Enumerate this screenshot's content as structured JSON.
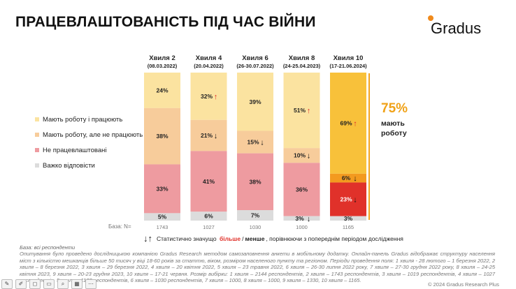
{
  "title": "ПРАЦЕВЛАШТОВАНІСТЬ ПІД ЧАС ВІЙНИ",
  "logo": "Gradus",
  "colors": {
    "accent": "#f0a218",
    "seg1": "#fbe3a0",
    "seg2": "#f7cc9b",
    "seg3": "#ee9ba0",
    "seg4": "#dcdcdc",
    "hl1": "#f8c13a",
    "hl2": "#f39a1f",
    "hl3": "#e0312a",
    "hl4": "#dcdcdc",
    "up": "#e0312a",
    "down": "#111111"
  },
  "chart_data": {
    "type": "bar",
    "stacked": true,
    "categories": [
      {
        "name": "Хвиля 2",
        "date": "(08.03.2022)",
        "base": "1743"
      },
      {
        "name": "Хвиля 4",
        "date": "(20.04.2022)",
        "base": "1027"
      },
      {
        "name": "Хвиля 6",
        "date": "(26-30.07.2022)",
        "base": "1030"
      },
      {
        "name": "Хвиля 8",
        "date": "(24-25.04.2023)",
        "base": "1000"
      },
      {
        "name": "Хвиля 10",
        "date": "(17-21.06.2024)",
        "base": "1165"
      }
    ],
    "highlight_index": 4,
    "series": [
      {
        "name": "Мають роботу і працюють",
        "values": [
          24,
          32,
          39,
          51,
          69
        ],
        "sig": [
          "",
          "up",
          "",
          "up",
          "up"
        ]
      },
      {
        "name": "Мають роботу, але не працюють",
        "values": [
          38,
          21,
          15,
          10,
          6
        ],
        "sig": [
          "",
          "down",
          "down",
          "down",
          "down"
        ]
      },
      {
        "name": "Не працевлаштовані",
        "values": [
          33,
          41,
          38,
          36,
          23
        ],
        "sig": [
          "",
          "",
          "",
          "",
          "down"
        ]
      },
      {
        "name": "Важко відповісти",
        "values": [
          5,
          6,
          7,
          3,
          3
        ],
        "sig": [
          "",
          "",
          "",
          "down",
          ""
        ]
      }
    ],
    "ylim": [
      0,
      100
    ]
  },
  "summary": {
    "value": "75%",
    "line1": "мають",
    "line2": "роботу"
  },
  "base_label": "База: N=",
  "sig_note": {
    "arrows": "↓↑",
    "pre": "Статистично значущо",
    "more": "більше",
    "slash": "/",
    "less": "менше",
    "post": ", порівнюючи з попереднім періодом дослідження"
  },
  "footnote_head": "База: всі респонденти",
  "footnote": "Опитування було проведено дослідницькою компанією Gradus Research методом самозаповнення анкети в мобільному додатку. Онлайн-панель Gradus відображає структуру населення міст з кількістю мешканців більше 50 тисяч у віці 18-60 років за статтю, віком, розміром населеного пункту та регіоном. Періоди проведення поля: 1 хвиля - 28 лютого – 1 березня 2022, 2 хвиля – 8 березня 2022, 3 хвиля – 29 березня 2022, 4 хвиля – 20 квітня 2022, 5 хвиля – 23 травня 2022, 6 хвиля – 26-30 липня 2022 року, 7 хвиля – 27-30 грудня 2022 року, 8 хвиля – 24-25 квітня 2023, 9 хвиля – 20-23 грудня 2023, 10 хвиля – 17-21 червня. Розмір вибірки: 1 хвиля – 2144 респондентів, 2 хвиля – 1743 респондентів, 3 хвиля – 1019 респондентів, 4 хвиля – 1027 респондентів, 5 хвиля – 1133 респондентів, 6 хвиля – 1030 респондентів, 7 хвиля – 1000, 8 хвиля – 1000, 9 хвиля – 1330, 10 хвиля – 1165.",
  "copyright": "© 2024 Gradus Research Plus"
}
